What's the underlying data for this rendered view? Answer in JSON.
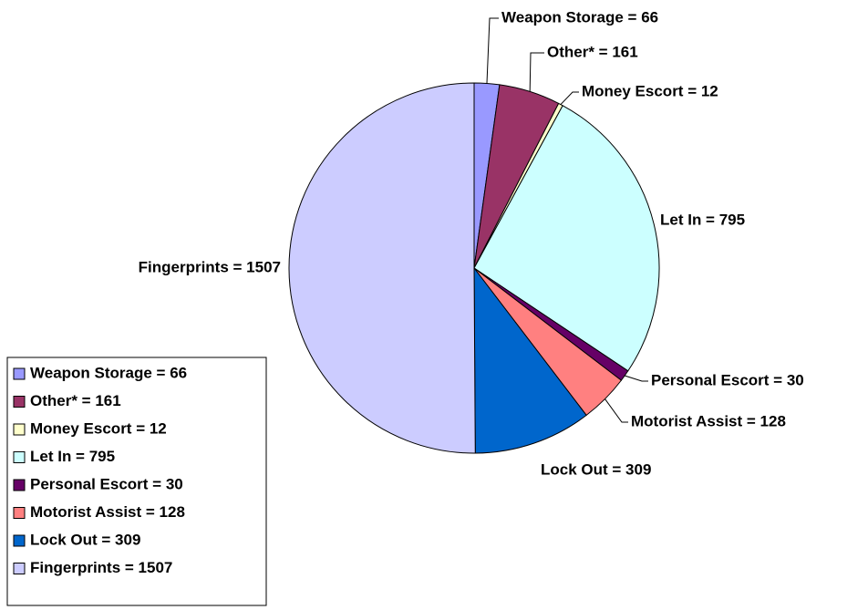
{
  "chart_data": {
    "type": "pie",
    "categories": [
      "Weapon Storage = 66",
      "Other* = 161",
      "Money Escort = 12",
      "Let In = 795",
      "Personal Escort = 30",
      "Motorist Assist = 128",
      "Lock Out = 309",
      "Fingerprints = 1507"
    ],
    "values": [
      66,
      161,
      12,
      795,
      30,
      128,
      309,
      1507
    ],
    "colors": [
      "#9999ff",
      "#993366",
      "#ffffcc",
      "#ccffff",
      "#660066",
      "#ff8080",
      "#0066cc",
      "#ccccff"
    ],
    "legend": "bottom-left"
  }
}
